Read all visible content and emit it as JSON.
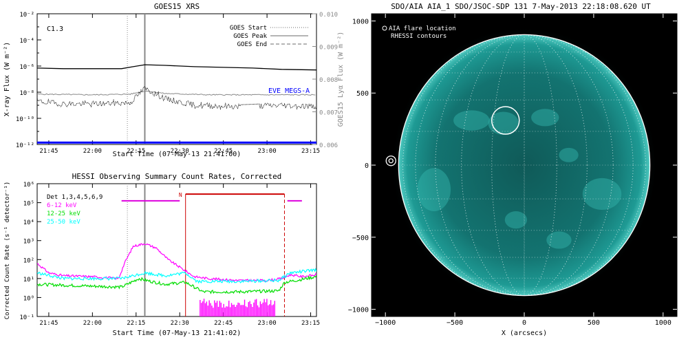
{
  "chart_data": [
    {
      "type": "line",
      "title": "GOES15 XRS",
      "xlabel": "Start Time (07-May-13 21:41:00)",
      "ylabel": "X-ray Flux (W m⁻²)",
      "ylabel_right": "GOES15 Lyα Flux (W m⁻²)",
      "flare_class": "C1.3",
      "x_ticks": [
        "21:45",
        "22:00",
        "22:15",
        "22:30",
        "22:45",
        "23:00",
        "23:15"
      ],
      "x_tick_minutes": [
        1305,
        1320,
        1335,
        1350,
        1365,
        1380,
        1395
      ],
      "xlim_minutes": [
        1301,
        1397
      ],
      "y_ticks": [
        "10⁻²",
        "10⁻⁴",
        "10⁻⁶",
        "10⁻⁸",
        "10⁻¹⁰",
        "10⁻¹²"
      ],
      "ylim_log10": [
        -12,
        -2
      ],
      "y2_ticks": [
        "0.010",
        "0.009",
        "0.008",
        "0.007",
        "0.006"
      ],
      "y2lim": [
        0.006,
        0.01
      ],
      "legend": [
        {
          "name": "GOES Start",
          "style": "dotted",
          "color": "#888888"
        },
        {
          "name": "GOES Peak",
          "style": "solid",
          "color": "#888888"
        },
        {
          "name": "GOES End",
          "style": "dashed",
          "color": "#888888"
        }
      ],
      "eve_label": "EVE MEGS-A",
      "eve_color": "#0000ff",
      "goes_start": 1332,
      "goes_peak": 1338,
      "series": [
        {
          "name": "",
          "color": "#000000",
          "x": [
            1301,
            1310,
            1320,
            1330,
            1334,
            1338,
            1345,
            1355,
            1365,
            1375,
            1385,
            1397
          ],
          "log10": [
            -6.15,
            -6.2,
            -6.2,
            -6.2,
            -6.05,
            -5.9,
            -5.95,
            -6.05,
            -6.1,
            -6.15,
            -6.25,
            -6.3
          ]
        },
        {
          "name": "",
          "color": "#888888",
          "x": [
            1301,
            1320,
            1333,
            1338,
            1345,
            1360,
            1380,
            1397
          ],
          "log10": [
            -8.15,
            -8.2,
            -8.15,
            -7.9,
            -8.1,
            -8.2,
            -8.2,
            -8.2
          ]
        },
        {
          "name": "",
          "color": "#000000",
          "style": "noisy",
          "x": [
            1301,
            1310,
            1320,
            1333,
            1338,
            1345,
            1355,
            1370,
            1385,
            1397
          ],
          "log10": [
            -8.7,
            -8.9,
            -8.9,
            -8.8,
            -7.7,
            -8.5,
            -9.0,
            -9.1,
            -9.0,
            -9.1
          ]
        },
        {
          "name": "",
          "color": "#0000ff",
          "x": [
            1301,
            1397
          ],
          "log10": [
            -11.85,
            -11.85
          ]
        }
      ]
    },
    {
      "type": "line",
      "title": "HESSI Observing Summary Count Rates, Corrected",
      "xlabel": "Start Time (07-May-13 21:41:02)",
      "ylabel": "Corrected Count Rate (s⁻¹ detector⁻¹)",
      "x_ticks": [
        "21:45",
        "22:00",
        "22:15",
        "22:30",
        "22:45",
        "23:00",
        "23:15"
      ],
      "x_tick_minutes": [
        1305,
        1320,
        1335,
        1350,
        1365,
        1380,
        1395
      ],
      "xlim_minutes": [
        1301,
        1397
      ],
      "y_ticks": [
        "10⁶",
        "10⁵",
        "10⁴",
        "10³",
        "10²",
        "10¹",
        "10⁰",
        "10⁻¹"
      ],
      "ylim_log10": [
        -1,
        6
      ],
      "legend": [
        {
          "name": "Det 1,3,4,5,6,9",
          "color": "#000000"
        },
        {
          "name": "6-12 keV",
          "color": "#ff00ff"
        },
        {
          "name": "12-25 keV",
          "color": "#00dd00"
        },
        {
          "name": "25-50 keV",
          "color": "#00ffff"
        }
      ],
      "night_label": "N",
      "goes_start": 1332,
      "goes_peak": 1338,
      "night_start": 1352,
      "night_end": 1386,
      "series": [
        {
          "name": "6-12 keV",
          "color": "#ff00ff",
          "x": [
            1301,
            1305,
            1310,
            1320,
            1329,
            1331,
            1334,
            1338,
            1342,
            1346,
            1351,
            1355,
            1360,
            1370,
            1380,
            1385,
            1388,
            1392,
            1397
          ],
          "log10": [
            1.8,
            1.3,
            1.15,
            1.1,
            1.0,
            1.8,
            2.7,
            2.85,
            2.6,
            2.0,
            1.5,
            1.1,
            1.0,
            0.9,
            0.9,
            1.0,
            1.2,
            1.1,
            1.2
          ]
        },
        {
          "name": "12-25 keV",
          "color": "#00dd00",
          "x": [
            1301,
            1310,
            1320,
            1330,
            1336,
            1340,
            1345,
            1352,
            1355,
            1358,
            1370,
            1384,
            1386,
            1390,
            1397
          ],
          "log10": [
            0.7,
            0.65,
            0.6,
            0.55,
            1.0,
            0.85,
            0.7,
            0.8,
            0.55,
            0.3,
            0.3,
            0.35,
            0.8,
            0.9,
            1.1
          ]
        },
        {
          "name": "25-50 keV",
          "color": "#00ffff",
          "x": [
            1301,
            1310,
            1320,
            1330,
            1338,
            1345,
            1352,
            1356,
            1360,
            1370,
            1384,
            1388,
            1397
          ],
          "log10": [
            1.3,
            1.0,
            1.0,
            1.0,
            1.3,
            1.15,
            1.3,
            0.85,
            0.85,
            0.85,
            0.9,
            1.3,
            1.45
          ]
        },
        {
          "name": "",
          "color": "#ff00ff",
          "style": "spikes",
          "x": [
            1358,
            1362,
            1366,
            1370,
            1374,
            1378,
            1383
          ],
          "log10": [
            -0.6,
            -0.6,
            -0.6,
            -0.6,
            -0.6,
            -0.6,
            -0.6
          ]
        }
      ]
    },
    {
      "type": "heatmap",
      "title": "SDO/AIA AIA_1 SDO/JSOC-SDP 131  7-May-2013 22:18:08.620 UT",
      "xlabel": "X (arcsecs)",
      "ylabel": "",
      "x_ticks": [
        -1000,
        -500,
        0,
        500,
        1000
      ],
      "y_ticks": [
        1000,
        500,
        0,
        -500,
        -1000
      ],
      "xlim": [
        -1100,
        1100
      ],
      "ylim": [
        -1050,
        1050
      ],
      "legend": [
        "AIA flare location",
        "RHESSI contours"
      ],
      "solar_radius": 905,
      "flare_location": [
        -135,
        310
      ],
      "rhessi_contours": [
        -960,
        30
      ],
      "disk_color": "#1a8a84"
    }
  ]
}
